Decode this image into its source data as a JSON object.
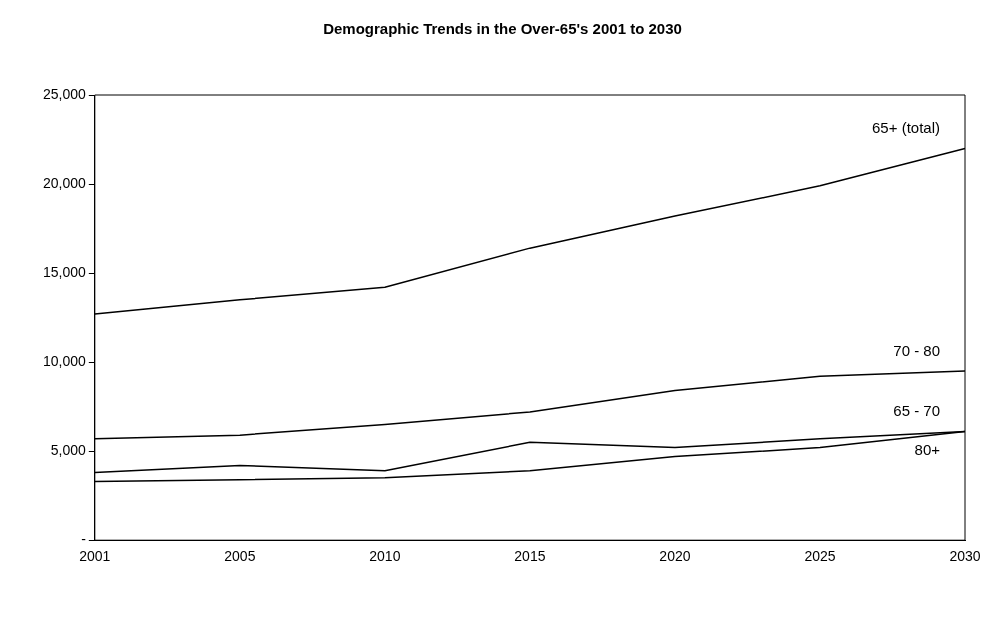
{
  "chart_data": {
    "type": "line",
    "title": "Demographic Trends in the Over-65's 2001 to 2030",
    "categories": [
      "2001",
      "2005",
      "2010",
      "2015",
      "2020",
      "2025",
      "2030"
    ],
    "series": [
      {
        "name": "65+ (total)",
        "color": "#000000",
        "values": [
          12700,
          13500,
          14200,
          16400,
          18200,
          19900,
          22000
        ]
      },
      {
        "name": "70 - 80",
        "color": "#000000",
        "values": [
          5700,
          5900,
          6500,
          7200,
          8400,
          9200,
          9500
        ]
      },
      {
        "name": "65 - 70",
        "color": "#000000",
        "values": [
          3800,
          4200,
          3900,
          5500,
          5200,
          5700,
          6100
        ]
      },
      {
        "name": "80+",
        "color": "#000000",
        "values": [
          3300,
          3400,
          3500,
          3900,
          4700,
          5200,
          6100
        ]
      }
    ],
    "ylim": [
      0,
      25000
    ],
    "yticks": [
      {
        "value": 0,
        "label": "-"
      },
      {
        "value": 5000,
        "label": "5,000"
      },
      {
        "value": 10000,
        "label": "10,000"
      },
      {
        "value": 15000,
        "label": "15,000"
      },
      {
        "value": 20000,
        "label": "20,000"
      },
      {
        "value": 25000,
        "label": "25,000"
      }
    ],
    "grid": false,
    "legend": false,
    "marker": "none",
    "line_style": "solid"
  }
}
